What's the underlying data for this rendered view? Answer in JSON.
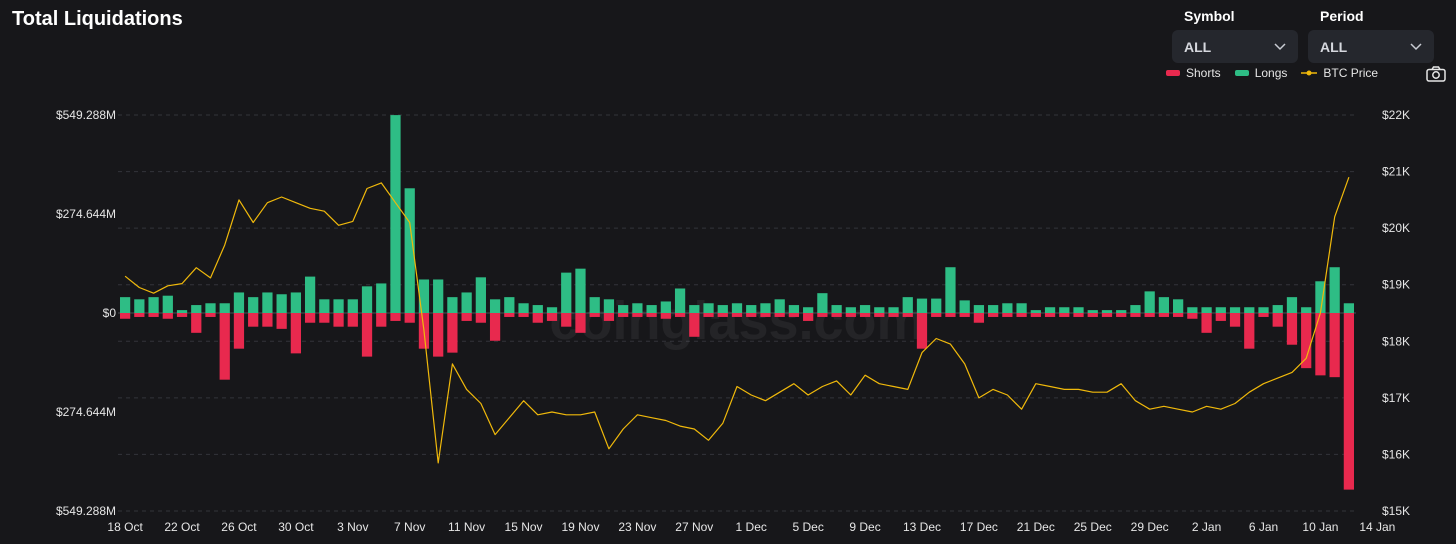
{
  "header": {
    "title": "Total Liquidations"
  },
  "controls": {
    "symbol_label": "Symbol",
    "symbol_value": "ALL",
    "period_label": "Period",
    "period_value": "ALL"
  },
  "watermark": "coinglass.com",
  "icons": {
    "dropdown": "chevron-down-icon",
    "camera": "camera-icon"
  },
  "colors": {
    "shorts": "#e8294e",
    "longs": "#2ebd85",
    "price": "#f0b90b"
  },
  "chart_data": {
    "type": "bar",
    "title": "Total Liquidations",
    "legend": [
      "Shorts",
      "Longs",
      "BTC Price"
    ],
    "legend_position": "top-right",
    "grid": true,
    "x_tick_labels": [
      "18 Oct",
      "22 Oct",
      "26 Oct",
      "30 Oct",
      "3 Nov",
      "7 Nov",
      "11 Nov",
      "15 Nov",
      "19 Nov",
      "23 Nov",
      "27 Nov",
      "1 Dec",
      "5 Dec",
      "9 Dec",
      "13 Dec",
      "17 Dec",
      "21 Dec",
      "25 Dec",
      "29 Dec",
      "2 Jan",
      "6 Jan",
      "10 Jan",
      "14 Jan"
    ],
    "y_left_ticks": [
      "$549.288M",
      "$274.644M",
      "$0",
      "$274.644M",
      "$549.288M"
    ],
    "y_left_range": [
      -549.288,
      549.288
    ],
    "y_right_ticks": [
      "$22K",
      "$21K",
      "$20K",
      "$19K",
      "$18K",
      "$17K",
      "$16K",
      "$15K"
    ],
    "y_right_range": [
      15000,
      22000
    ],
    "start_date": "2022-10-18",
    "series": [
      {
        "name": "Longs",
        "unit": "$M",
        "values": [
          44,
          38,
          44,
          48,
          8,
          22,
          27,
          27,
          57,
          44,
          57,
          52,
          57,
          101,
          38,
          38,
          38,
          74,
          82,
          549,
          346,
          93,
          93,
          44,
          57,
          99,
          38,
          44,
          27,
          22,
          16,
          112,
          123,
          44,
          38,
          22,
          27,
          22,
          32,
          68,
          22,
          27,
          22,
          27,
          22,
          27,
          38,
          22,
          16,
          55,
          22,
          16,
          22,
          16,
          16,
          44,
          40,
          40,
          127,
          35,
          22,
          22,
          27,
          27,
          8,
          16,
          16,
          16,
          8,
          8,
          8,
          22,
          60,
          44,
          38,
          16,
          16,
          16,
          16,
          16,
          16,
          22,
          44,
          16,
          88,
          127,
          27
        ]
      },
      {
        "name": "Shorts",
        "unit": "$M",
        "values": [
          -16,
          -11,
          -11,
          -16,
          -11,
          -55,
          -11,
          -185,
          -99,
          -38,
          -38,
          -44,
          -112,
          -27,
          -27,
          -38,
          -38,
          -121,
          -38,
          -22,
          -27,
          -99,
          -121,
          -110,
          -22,
          -27,
          -77,
          -11,
          -11,
          -27,
          -22,
          -38,
          -55,
          -11,
          -22,
          -11,
          -11,
          -11,
          -16,
          -11,
          -66,
          -11,
          -11,
          -11,
          -11,
          -11,
          -11,
          -11,
          -22,
          -11,
          -11,
          -11,
          -11,
          -11,
          -11,
          -11,
          -99,
          -11,
          -11,
          -11,
          -27,
          -11,
          -11,
          -11,
          -11,
          -11,
          -11,
          -11,
          -11,
          -11,
          -11,
          -11,
          -11,
          -11,
          -11,
          -16,
          -55,
          -22,
          -38,
          -99,
          -11,
          -38,
          -88,
          -153,
          -173,
          -178,
          -490
        ]
      },
      {
        "name": "BTC Price",
        "unit": "USD",
        "values": [
          19150,
          18950,
          18850,
          18980,
          19020,
          19300,
          19120,
          19700,
          20500,
          20100,
          20450,
          20550,
          20450,
          20350,
          20300,
          20050,
          20120,
          20700,
          20800,
          20450,
          20100,
          18200,
          15850,
          17600,
          17150,
          16900,
          16350,
          16650,
          16950,
          16700,
          16750,
          16700,
          16700,
          16750,
          16100,
          16450,
          16700,
          16650,
          16600,
          16500,
          16450,
          16250,
          16550,
          17200,
          17050,
          16950,
          17100,
          17250,
          17050,
          17200,
          17300,
          17050,
          17400,
          17250,
          17200,
          17150,
          17800,
          18050,
          17950,
          17600,
          17000,
          17150,
          17050,
          16800,
          17250,
          17200,
          17150,
          17150,
          17100,
          17100,
          17250,
          16950,
          16800,
          16850,
          16800,
          16750,
          16850,
          16800,
          16900,
          17100,
          17250,
          17350,
          17450,
          17700,
          18500,
          20200,
          20900
        ]
      }
    ]
  }
}
